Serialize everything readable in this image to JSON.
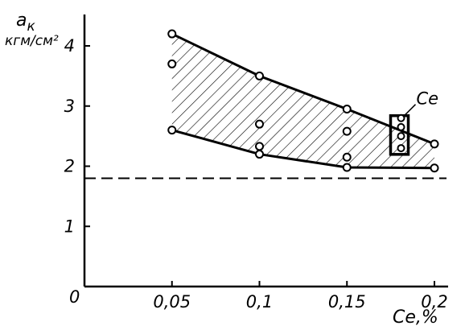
{
  "chart_data": {
    "type": "scatter",
    "ylabel": "a",
    "ylabel_sub": "к",
    "ylabel_unit": "кгм/см²",
    "xlabel": "Ce,%",
    "x_ticks": [
      {
        "value": 0.05,
        "label": "0,05"
      },
      {
        "value": 0.1,
        "label": "0,1"
      },
      {
        "value": 0.15,
        "label": "0,15"
      },
      {
        "value": 0.2,
        "label": "0,2"
      }
    ],
    "y_ticks": [
      {
        "value": 1,
        "label": "1"
      },
      {
        "value": 2,
        "label": "2"
      },
      {
        "value": 3,
        "label": "3"
      },
      {
        "value": 4,
        "label": "4"
      }
    ],
    "origin_label": "0",
    "xlim": [
      0,
      0.2
    ],
    "ylim": [
      0,
      4.4
    ],
    "points": [
      {
        "x": 0.05,
        "y": 4.2
      },
      {
        "x": 0.05,
        "y": 3.7
      },
      {
        "x": 0.05,
        "y": 2.6
      },
      {
        "x": 0.1,
        "y": 3.5
      },
      {
        "x": 0.1,
        "y": 2.7
      },
      {
        "x": 0.1,
        "y": 2.33
      },
      {
        "x": 0.1,
        "y": 2.2
      },
      {
        "x": 0.15,
        "y": 2.95
      },
      {
        "x": 0.15,
        "y": 2.58
      },
      {
        "x": 0.15,
        "y": 2.15
      },
      {
        "x": 0.15,
        "y": 1.98
      },
      {
        "x": 0.2,
        "y": 2.37
      },
      {
        "x": 0.2,
        "y": 1.97
      }
    ],
    "upper_envelope": [
      {
        "x": 0.05,
        "y": 4.2
      },
      {
        "x": 0.1,
        "y": 3.5
      },
      {
        "x": 0.15,
        "y": 2.95
      },
      {
        "x": 0.2,
        "y": 2.37
      }
    ],
    "lower_envelope": [
      {
        "x": 0.05,
        "y": 2.6
      },
      {
        "x": 0.1,
        "y": 2.2
      },
      {
        "x": 0.15,
        "y": 1.98
      },
      {
        "x": 0.2,
        "y": 1.97
      }
    ],
    "reference_line": {
      "y": 1.8,
      "style": "dashed"
    },
    "ce_marker": {
      "x": 0.18,
      "y_range": [
        2.25,
        2.8
      ],
      "points": [
        2.8,
        2.65,
        2.5,
        2.3
      ],
      "label": "Ce"
    }
  }
}
